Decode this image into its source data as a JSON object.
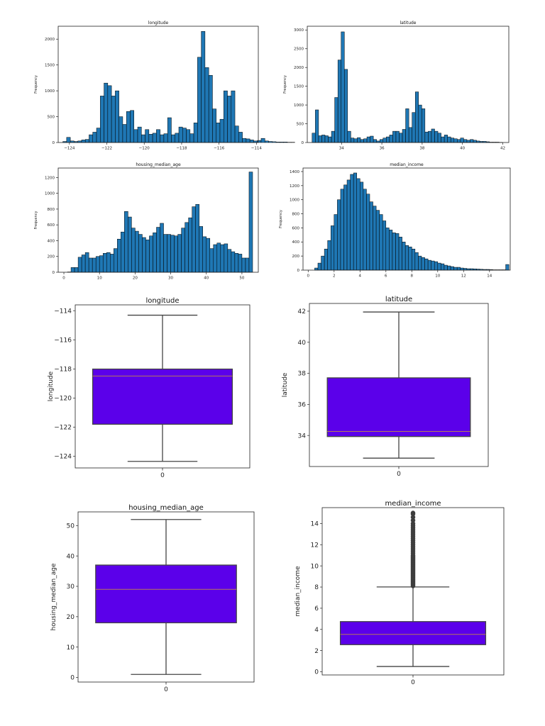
{
  "colors": {
    "hist_fill": "#1f77b4",
    "hist_edge": "#000000",
    "box_fill": "#5b00ea",
    "box_edge": "#444444",
    "median": "#b57a5a"
  },
  "chart_data": [
    {
      "id": "hist-longitude",
      "type": "bar",
      "title": "longitude",
      "xlabel": "",
      "ylabel": "Frequency",
      "xlim": [
        -124.6,
        -113.9
      ],
      "ylim": [
        0,
        2250
      ],
      "xticks": [
        -124,
        -122,
        -120,
        -118,
        -116,
        -114
      ],
      "xtick_labels": [
        "−124",
        "−122",
        "−120",
        "−118",
        "−116",
        "−114"
      ],
      "yticks": [
        0,
        500,
        1000,
        1500,
        2000
      ],
      "ytick_labels": [
        "0",
        "500",
        "1000",
        "1500",
        "2000"
      ],
      "bins_start": -124.35,
      "bin_width": 0.2,
      "values": [
        20,
        100,
        30,
        20,
        30,
        50,
        60,
        150,
        200,
        280,
        900,
        1150,
        1100,
        900,
        1000,
        500,
        350,
        600,
        620,
        250,
        300,
        150,
        250,
        160,
        180,
        250,
        150,
        170,
        480,
        150,
        180,
        300,
        280,
        250,
        170,
        380,
        1650,
        2150,
        1450,
        1300,
        650,
        380,
        450,
        1000,
        900,
        1000,
        320,
        200,
        80,
        70,
        50,
        30,
        40,
        80,
        30,
        20,
        15,
        10,
        10,
        10,
        5,
        5
      ]
    },
    {
      "id": "hist-latitude",
      "type": "bar",
      "title": "latitude",
      "xlabel": "",
      "ylabel": "Frequency",
      "xlim": [
        32.3,
        42.3
      ],
      "ylim": [
        0,
        3100
      ],
      "xticks": [
        34,
        36,
        38,
        40,
        42
      ],
      "xtick_labels": [
        "34",
        "36",
        "38",
        "40",
        "42"
      ],
      "yticks": [
        0,
        500,
        1000,
        1500,
        2000,
        2500,
        3000
      ],
      "ytick_labels": [
        "0",
        "500",
        "1000",
        "1500",
        "2000",
        "2500",
        "3000"
      ],
      "bins_start": 32.54,
      "bin_width": 0.16,
      "values": [
        250,
        870,
        180,
        200,
        180,
        150,
        300,
        1200,
        2200,
        2950,
        1950,
        300,
        120,
        100,
        130,
        80,
        100,
        150,
        170,
        80,
        40,
        80,
        120,
        150,
        200,
        300,
        300,
        250,
        350,
        900,
        400,
        800,
        1350,
        1000,
        900,
        280,
        300,
        360,
        300,
        250,
        150,
        200,
        150,
        120,
        100,
        80,
        120,
        80,
        60,
        80,
        60,
        40,
        30,
        30,
        20,
        10,
        10,
        10,
        5
      ]
    },
    {
      "id": "hist-housing-median-age",
      "type": "bar",
      "title": "housing_median_age",
      "xlabel": "",
      "ylabel": "Frequency",
      "xlim": [
        -1.6,
        54.6
      ],
      "ylim": [
        0,
        1320
      ],
      "xticks": [
        0,
        10,
        20,
        30,
        40,
        50
      ],
      "xtick_labels": [
        "0",
        "10",
        "20",
        "30",
        "40",
        "50"
      ],
      "yticks": [
        0,
        200,
        400,
        600,
        800,
        1000,
        1200
      ],
      "ytick_labels": [
        "0",
        "200",
        "400",
        "600",
        "800",
        "1000",
        "1200"
      ],
      "bins_start": 1.0,
      "bin_width": 1.0,
      "values": [
        4,
        60,
        60,
        190,
        220,
        250,
        180,
        180,
        200,
        210,
        240,
        250,
        230,
        300,
        420,
        510,
        770,
        700,
        560,
        520,
        480,
        440,
        410,
        460,
        500,
        570,
        620,
        480,
        480,
        470,
        460,
        480,
        560,
        630,
        690,
        830,
        860,
        580,
        450,
        430,
        300,
        350,
        370,
        350,
        360,
        290,
        260,
        240,
        230,
        180,
        180,
        1270
      ]
    },
    {
      "id": "hist-median-income",
      "type": "bar",
      "title": "median_income",
      "xlabel": "",
      "ylabel": "Frequency",
      "xlim": [
        -0.4,
        15.6
      ],
      "ylim": [
        0,
        1450
      ],
      "xticks": [
        0,
        2,
        4,
        6,
        8,
        10,
        12,
        14
      ],
      "xtick_labels": [
        "0",
        "2",
        "4",
        "6",
        "8",
        "10",
        "12",
        "14"
      ],
      "yticks": [
        0,
        200,
        400,
        600,
        800,
        1000,
        1200,
        1400
      ],
      "ytick_labels": [
        "0",
        "200",
        "400",
        "600",
        "800",
        "1000",
        "1200",
        "1400"
      ],
      "bins_start": 0.5,
      "bin_width": 0.25,
      "values": [
        30,
        100,
        200,
        300,
        420,
        630,
        790,
        1000,
        1150,
        1210,
        1280,
        1360,
        1380,
        1300,
        1250,
        1150,
        1080,
        970,
        910,
        850,
        790,
        700,
        600,
        570,
        530,
        520,
        470,
        400,
        350,
        330,
        300,
        250,
        200,
        180,
        160,
        140,
        130,
        120,
        100,
        90,
        70,
        60,
        50,
        40,
        40,
        30,
        25,
        20,
        20,
        18,
        15,
        12,
        10,
        10,
        8,
        5,
        5,
        5,
        5,
        80
      ]
    },
    {
      "id": "box-longitude",
      "type": "box",
      "title": "longitude",
      "xlabel": "",
      "ylabel": "longitude",
      "xtick_labels": [
        "0"
      ],
      "ylim": [
        -124.8,
        -113.6
      ],
      "yticks": [
        -124,
        -122,
        -120,
        -118,
        -116,
        -114
      ],
      "ytick_labels": [
        "−124",
        "−122",
        "−120",
        "−118",
        "−116",
        "−114"
      ],
      "whisker_low": -124.35,
      "q1": -121.8,
      "median": -118.49,
      "q3": -118.01,
      "whisker_high": -114.31,
      "outliers": []
    },
    {
      "id": "box-latitude",
      "type": "box",
      "title": "latitude",
      "xlabel": "",
      "ylabel": "latitude",
      "xtick_labels": [
        "0"
      ],
      "ylim": [
        32.0,
        42.5
      ],
      "yticks": [
        34,
        36,
        38,
        40,
        42
      ],
      "ytick_labels": [
        "34",
        "36",
        "38",
        "40",
        "42"
      ],
      "whisker_low": 32.54,
      "q1": 33.93,
      "median": 34.26,
      "q3": 37.71,
      "whisker_high": 41.95,
      "outliers": []
    },
    {
      "id": "box-housing-median-age",
      "type": "box",
      "title": "housing_median_age",
      "xlabel": "",
      "ylabel": "housing_median_age",
      "xtick_labels": [
        "0"
      ],
      "ylim": [
        -1.5,
        54.5
      ],
      "yticks": [
        0,
        10,
        20,
        30,
        40,
        50
      ],
      "ytick_labels": [
        "0",
        "10",
        "20",
        "30",
        "40",
        "50"
      ],
      "whisker_low": 1,
      "q1": 18,
      "median": 29,
      "q3": 37,
      "whisker_high": 52,
      "outliers": []
    },
    {
      "id": "box-median-income",
      "type": "box",
      "title": "median_income",
      "xlabel": "",
      "ylabel": "median_income",
      "xtick_labels": [
        "0"
      ],
      "ylim": [
        -0.3,
        15.5
      ],
      "yticks": [
        0,
        2,
        4,
        6,
        8,
        10,
        12,
        14
      ],
      "ytick_labels": [
        "0",
        "2",
        "4",
        "6",
        "8",
        "10",
        "12",
        "14"
      ],
      "whisker_low": 0.5,
      "q1": 2.56,
      "median": 3.53,
      "q3": 4.74,
      "whisker_high": 8.01,
      "outliers": [
        8.1,
        8.2,
        8.3,
        8.4,
        8.5,
        8.6,
        8.7,
        8.8,
        8.9,
        9.0,
        9.1,
        9.2,
        9.3,
        9.4,
        9.5,
        9.6,
        9.7,
        9.8,
        9.9,
        10.0,
        10.1,
        10.2,
        10.3,
        10.4,
        10.5,
        10.6,
        10.7,
        10.8,
        10.9,
        11.0,
        11.2,
        11.4,
        11.6,
        11.8,
        12.0,
        12.2,
        12.4,
        12.6,
        12.8,
        13.0,
        13.2,
        13.4,
        13.6,
        13.8,
        14.0,
        14.3,
        14.6,
        14.9,
        15.0
      ]
    }
  ]
}
